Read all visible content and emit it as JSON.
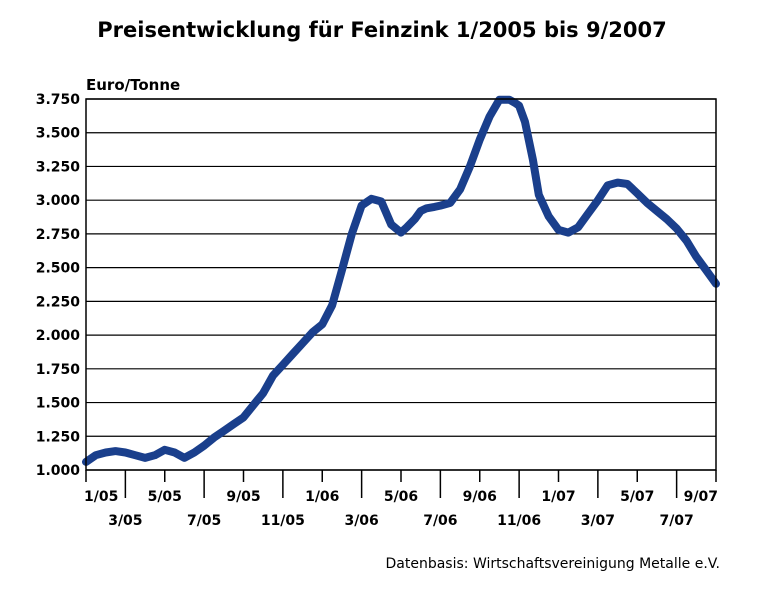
{
  "chart_data": {
    "type": "line",
    "title": "Preisentwicklung für Feinzink 1/2005 bis 9/2007",
    "ylabel": "Euro/Tonne",
    "xlabel": "",
    "source": "Datenbasis: Wirtschaftsvereinigung Metalle e.V.",
    "ylim": [
      1000,
      3750
    ],
    "yticks": [
      1000,
      1250,
      1500,
      1750,
      2000,
      2250,
      2500,
      2750,
      3000,
      3250,
      3500,
      3750
    ],
    "ytick_labels": [
      "1.000",
      "1.250",
      "1.500",
      "1.750",
      "2.000",
      "2.250",
      "2.500",
      "2.750",
      "3.000",
      "3.250",
      "3.500",
      "3.750"
    ],
    "xlim": [
      0,
      32
    ],
    "xticks": [
      {
        "label": "1/05",
        "x": 0
      },
      {
        "label": "3/05",
        "x": 2
      },
      {
        "label": "5/05",
        "x": 4
      },
      {
        "label": "7/05",
        "x": 6
      },
      {
        "label": "9/05",
        "x": 8
      },
      {
        "label": "11/05",
        "x": 10
      },
      {
        "label": "1/06",
        "x": 12
      },
      {
        "label": "3/06",
        "x": 14
      },
      {
        "label": "5/06",
        "x": 16
      },
      {
        "label": "7/06",
        "x": 18
      },
      {
        "label": "9/06",
        "x": 20
      },
      {
        "label": "11/06",
        "x": 22
      },
      {
        "label": "1/07",
        "x": 24
      },
      {
        "label": "3/07",
        "x": 26
      },
      {
        "label": "5/07",
        "x": 28
      },
      {
        "label": "7/07",
        "x": 30
      },
      {
        "label": "9/07",
        "x": 32
      }
    ],
    "grid": "horizontal",
    "series": [
      {
        "color": "#1a3f8c",
        "x": [
          0,
          0.5,
          1,
          1.5,
          2,
          2.5,
          3,
          3.5,
          4,
          4.5,
          5,
          5.5,
          6,
          6.5,
          7,
          7.5,
          8,
          8.5,
          9,
          9.5,
          10,
          10.5,
          11,
          11.5,
          12,
          12.5,
          13,
          13.5,
          14,
          14.5,
          15,
          15.5,
          16,
          16.3,
          16.7,
          17,
          17.3,
          17.7,
          18,
          18.5,
          19,
          19.5,
          20,
          20.5,
          21,
          21.5,
          21.8,
          22,
          22.3,
          22.7,
          23,
          23.5,
          24,
          24.5,
          25,
          25.5,
          26,
          26.5,
          27,
          27.5,
          28,
          28.5,
          29,
          29.5,
          30,
          30.5,
          31,
          31.5,
          32
        ],
        "values": [
          1060,
          1110,
          1130,
          1140,
          1130,
          1110,
          1090,
          1110,
          1150,
          1130,
          1090,
          1130,
          1180,
          1240,
          1290,
          1340,
          1390,
          1480,
          1570,
          1700,
          1780,
          1860,
          1940,
          2020,
          2080,
          2220,
          2480,
          2750,
          2960,
          3010,
          2990,
          2820,
          2760,
          2800,
          2860,
          2920,
          2940,
          2950,
          2960,
          2980,
          3080,
          3250,
          3450,
          3620,
          3745,
          3745,
          3720,
          3700,
          3580,
          3300,
          3040,
          2880,
          2780,
          2760,
          2800,
          2900,
          3000,
          3110,
          3130,
          3120,
          3050,
          2980,
          2920,
          2860,
          2790,
          2700,
          2580,
          2480,
          2380
        ]
      }
    ]
  }
}
